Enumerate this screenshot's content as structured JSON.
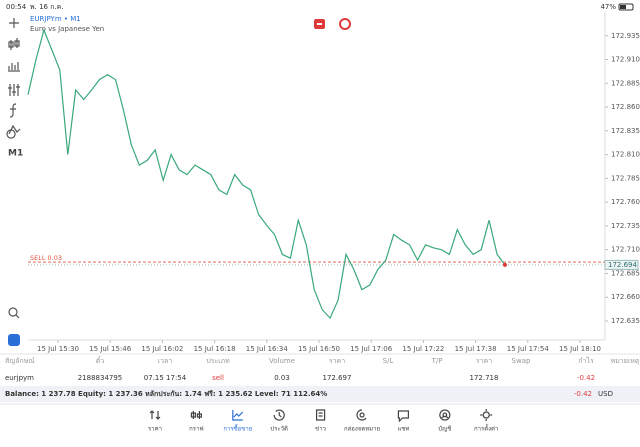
{
  "status_bar": {
    "time": "00:54",
    "date": "พ. 16 ก.ค.",
    "battery": "47%"
  },
  "toolbar": {
    "timeframe": "M1"
  },
  "chart_data": {
    "type": "line",
    "title": "EURJPYm • M1",
    "subtitle": "Euro vs Japanese Yen",
    "color": "#3aa87a",
    "values": [
      172.873,
      172.91,
      172.941,
      172.92,
      172.899,
      172.81,
      172.878,
      172.868,
      172.878,
      172.889,
      172.894,
      172.889,
      172.857,
      172.82,
      172.799,
      172.804,
      172.815,
      172.783,
      172.81,
      172.794,
      172.789,
      172.799,
      172.794,
      172.789,
      172.773,
      172.768,
      172.789,
      172.778,
      172.773,
      172.747,
      172.736,
      172.726,
      172.705,
      172.701,
      172.741,
      172.715,
      172.668,
      172.647,
      172.638,
      172.657,
      172.705,
      172.689,
      172.668,
      172.673,
      172.689,
      172.699,
      172.726,
      172.72,
      172.715,
      172.699,
      172.715,
      172.712,
      172.71,
      172.705,
      172.731,
      172.715,
      172.705,
      172.71,
      172.741,
      172.705,
      172.694
    ],
    "ylim": [
      172.615,
      172.96
    ],
    "yticks": [
      172.935,
      {
        "value": 172.91,
        "label": "172.910"
      },
      172.885,
      {
        "value": 172.86,
        "label": "172.860"
      },
      172.835,
      {
        "value": 172.81,
        "label": "172.810"
      },
      172.785,
      {
        "value": 172.76,
        "label": "172.760"
      },
      172.735,
      {
        "value": 172.71,
        "label": "172.710"
      },
      172.685,
      {
        "value": 172.66,
        "label": "172.660"
      },
      172.635
    ],
    "xticks": [
      "15 Jul 15:30",
      "15 Jul 15:46",
      "15 Jul 16:02",
      "15 Jul 16:18",
      "15 Jul 16:34",
      "15 Jul 16:50",
      "15 Jul 17:06",
      "15 Jul 17:22",
      "15 Jul 17:38",
      "15 Jul 17:54",
      "15 Jul 18:10"
    ],
    "order_line": {
      "label": "SELL 0.03",
      "value": 172.697,
      "color": "#e0533a"
    },
    "current_price": 172.694
  },
  "positions": {
    "columns": [
      "สัญลักษณ์",
      "ตั๋ว",
      "เวลา",
      "ประเภท",
      "Volume",
      "ราคา",
      "S/L",
      "T/P",
      "ราคา",
      "Swap",
      "กำไร",
      "หมายเหตุ"
    ],
    "rows": [
      [
        "eurjpym",
        "2188834795",
        "07.15 17:54",
        "sell",
        "0.03",
        "172.697",
        null,
        null,
        "172.718",
        null,
        "-0.42",
        null
      ]
    ]
  },
  "summary": {
    "text": "Balance: 1 237.78 Equity: 1 237.36 หลักประกัน: 1.74 ฟรี: 1 235.62 Level: 71 112.64%",
    "profit": "-0.42",
    "currency": "USD"
  },
  "nav": {
    "items": [
      "ราคา",
      "กราฟ",
      "การซื้อขาย",
      "ประวัติ",
      "ข่าว",
      "กล่องจดหมาย",
      "แชท",
      "บัญชี",
      "การตั้งค่า"
    ],
    "active": 2
  }
}
